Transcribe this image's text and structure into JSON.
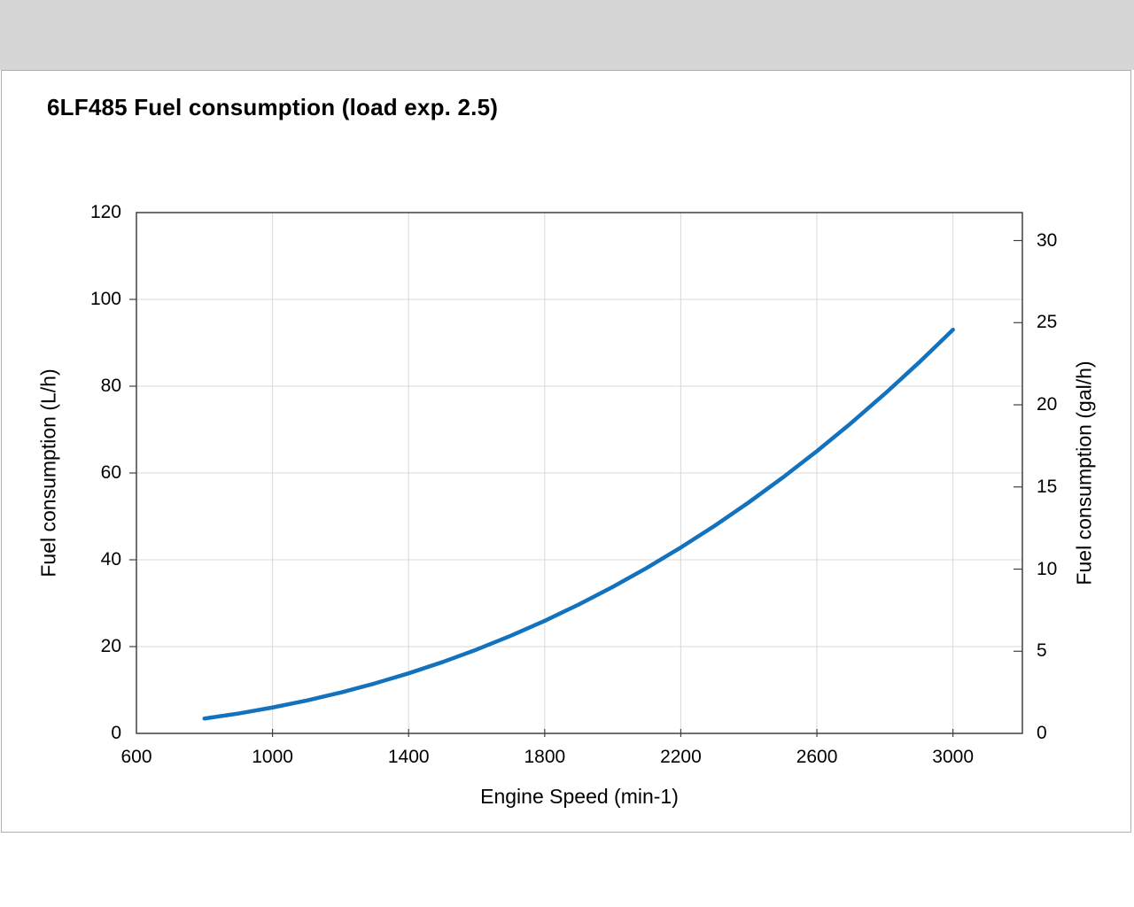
{
  "page": {
    "title": "6LF485 Fuel consumption (load exp. 2.5)"
  },
  "chart_data": {
    "type": "line",
    "title": "6LF485 Fuel consumption (load exp. 2.5)",
    "xlabel": "Engine Speed (min-1)",
    "ylabel_left": "Fuel consumption (L/h)",
    "ylabel_right": "Fuel consumption (gal/h)",
    "xlim": [
      600,
      3204
    ],
    "ylim_left": [
      0,
      120
    ],
    "ylim_right": [
      0,
      31.7
    ],
    "x_ticks": [
      600,
      1000,
      1400,
      1800,
      2200,
      2600,
      3000
    ],
    "y_ticks_left": [
      0,
      20,
      40,
      60,
      80,
      100,
      120
    ],
    "y_ticks_right": [
      0,
      5,
      10,
      15,
      20,
      25,
      30
    ],
    "liters_per_gallon": 3.78541,
    "grid": true,
    "legend": "none",
    "line_color": "#1272be",
    "grid_color": "#d9d9d9",
    "axis_color": "#404040",
    "series": [
      {
        "name": "Fuel consumption",
        "x": [
          800,
          900,
          1000,
          1100,
          1200,
          1300,
          1400,
          1500,
          1600,
          1700,
          1800,
          1900,
          2000,
          2100,
          2200,
          2300,
          2400,
          2500,
          2600,
          2700,
          2800,
          2900,
          3000
        ],
        "y_lph": [
          3.42,
          4.58,
          5.97,
          7.57,
          9.41,
          11.5,
          13.84,
          16.44,
          19.32,
          22.48,
          25.93,
          29.69,
          33.75,
          38.13,
          42.83,
          47.86,
          53.24,
          58.96,
          65.03,
          71.46,
          78.27,
          85.44,
          93.0
        ],
        "y_galh": [
          0.9,
          1.21,
          1.58,
          2.0,
          2.49,
          3.04,
          3.66,
          4.34,
          5.1,
          5.94,
          6.85,
          7.84,
          8.92,
          10.07,
          11.31,
          12.64,
          14.06,
          15.58,
          17.18,
          18.88,
          20.68,
          22.57,
          24.57
        ]
      }
    ]
  }
}
